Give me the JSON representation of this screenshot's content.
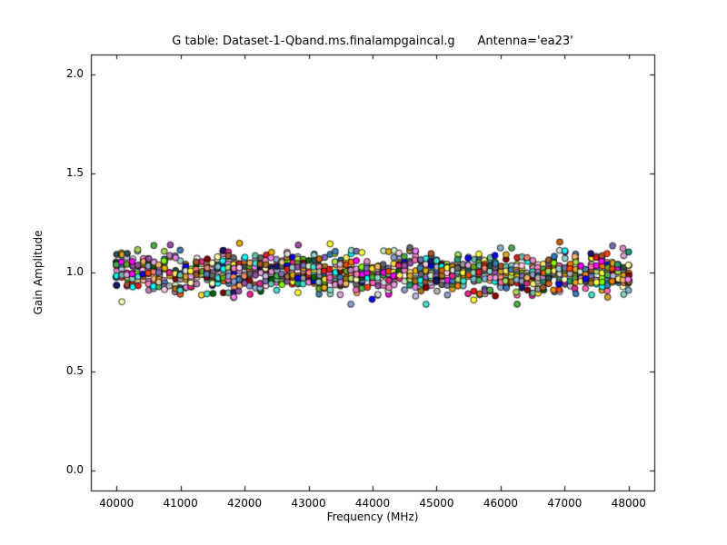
{
  "figure": {
    "background": "#ffffff",
    "axes_edge_color": "#000000"
  },
  "chart_data": {
    "type": "scatter",
    "title": "G table: Dataset-1-Qband.ms.finalampgaincal.g      Antenna='ea23'",
    "xlabel": "Frequency (MHz)",
    "ylabel": "Gain Amplitude",
    "xlim": [
      39600,
      48400
    ],
    "ylim": [
      -0.1,
      2.1
    ],
    "xticks": [
      40000,
      41000,
      42000,
      43000,
      44000,
      45000,
      46000,
      47000,
      48000
    ],
    "xtick_labels": [
      "40000",
      "41000",
      "42000",
      "43000",
      "44000",
      "45000",
      "46000",
      "47000",
      "48000"
    ],
    "yticks": [
      0.0,
      0.5,
      1.0,
      1.5,
      2.0
    ],
    "ytick_labels": [
      "0.0",
      "0.5",
      "1.0",
      "1.5",
      "2.0"
    ],
    "grid": false,
    "legend": "none",
    "marker": {
      "shape": "circle",
      "radius": 3.4,
      "edge_color": "#000000",
      "edge_width": 0.8
    },
    "scatter_model": {
      "description": "Dense vertical columns of randomly colored gain-solution points clustered around gain amplitude 1.0 (spread ~0.85-1.15) spanning 40000-48000 MHz",
      "columns": 97,
      "x_start": 40000,
      "x_end": 48000,
      "x_jitter": 8,
      "points_min": 10,
      "points_max": 14,
      "y_center": 1.0,
      "y_sigma": 0.052,
      "y_min": 0.84,
      "y_max": 1.16,
      "seed": 1337,
      "palette": [
        "#e41a1c",
        "#377eb8",
        "#4daf4a",
        "#984ea3",
        "#ff7f00",
        "#ffff33",
        "#a65628",
        "#f781bf",
        "#999999",
        "#66c2a5",
        "#fc8d62",
        "#8da0cb",
        "#e78ac3",
        "#a6d854",
        "#ffd92f",
        "#e5c494",
        "#b3b3b3",
        "#1b9e77",
        "#d95f02",
        "#7570b3",
        "#e7298a",
        "#66a61e",
        "#e6ab02",
        "#a6761d",
        "#666666",
        "#8dd3c7",
        "#ffffb3",
        "#bebada",
        "#fb8072",
        "#80b1d3",
        "#fdb462",
        "#b3de69",
        "#fccde5",
        "#d9d9d9",
        "#bc80bd",
        "#ccebc5",
        "#ffed6f",
        "#00ffff",
        "#ff00ff",
        "#0000ff",
        "#8b0000",
        "#006400",
        "#ff69b4",
        "#2f4f4f",
        "#daa520",
        "#40e0d0",
        "#ee82ee",
        "#191970",
        "#7fff00",
        "#ff4500",
        "#4682b4",
        "#dda0dd"
      ]
    }
  }
}
